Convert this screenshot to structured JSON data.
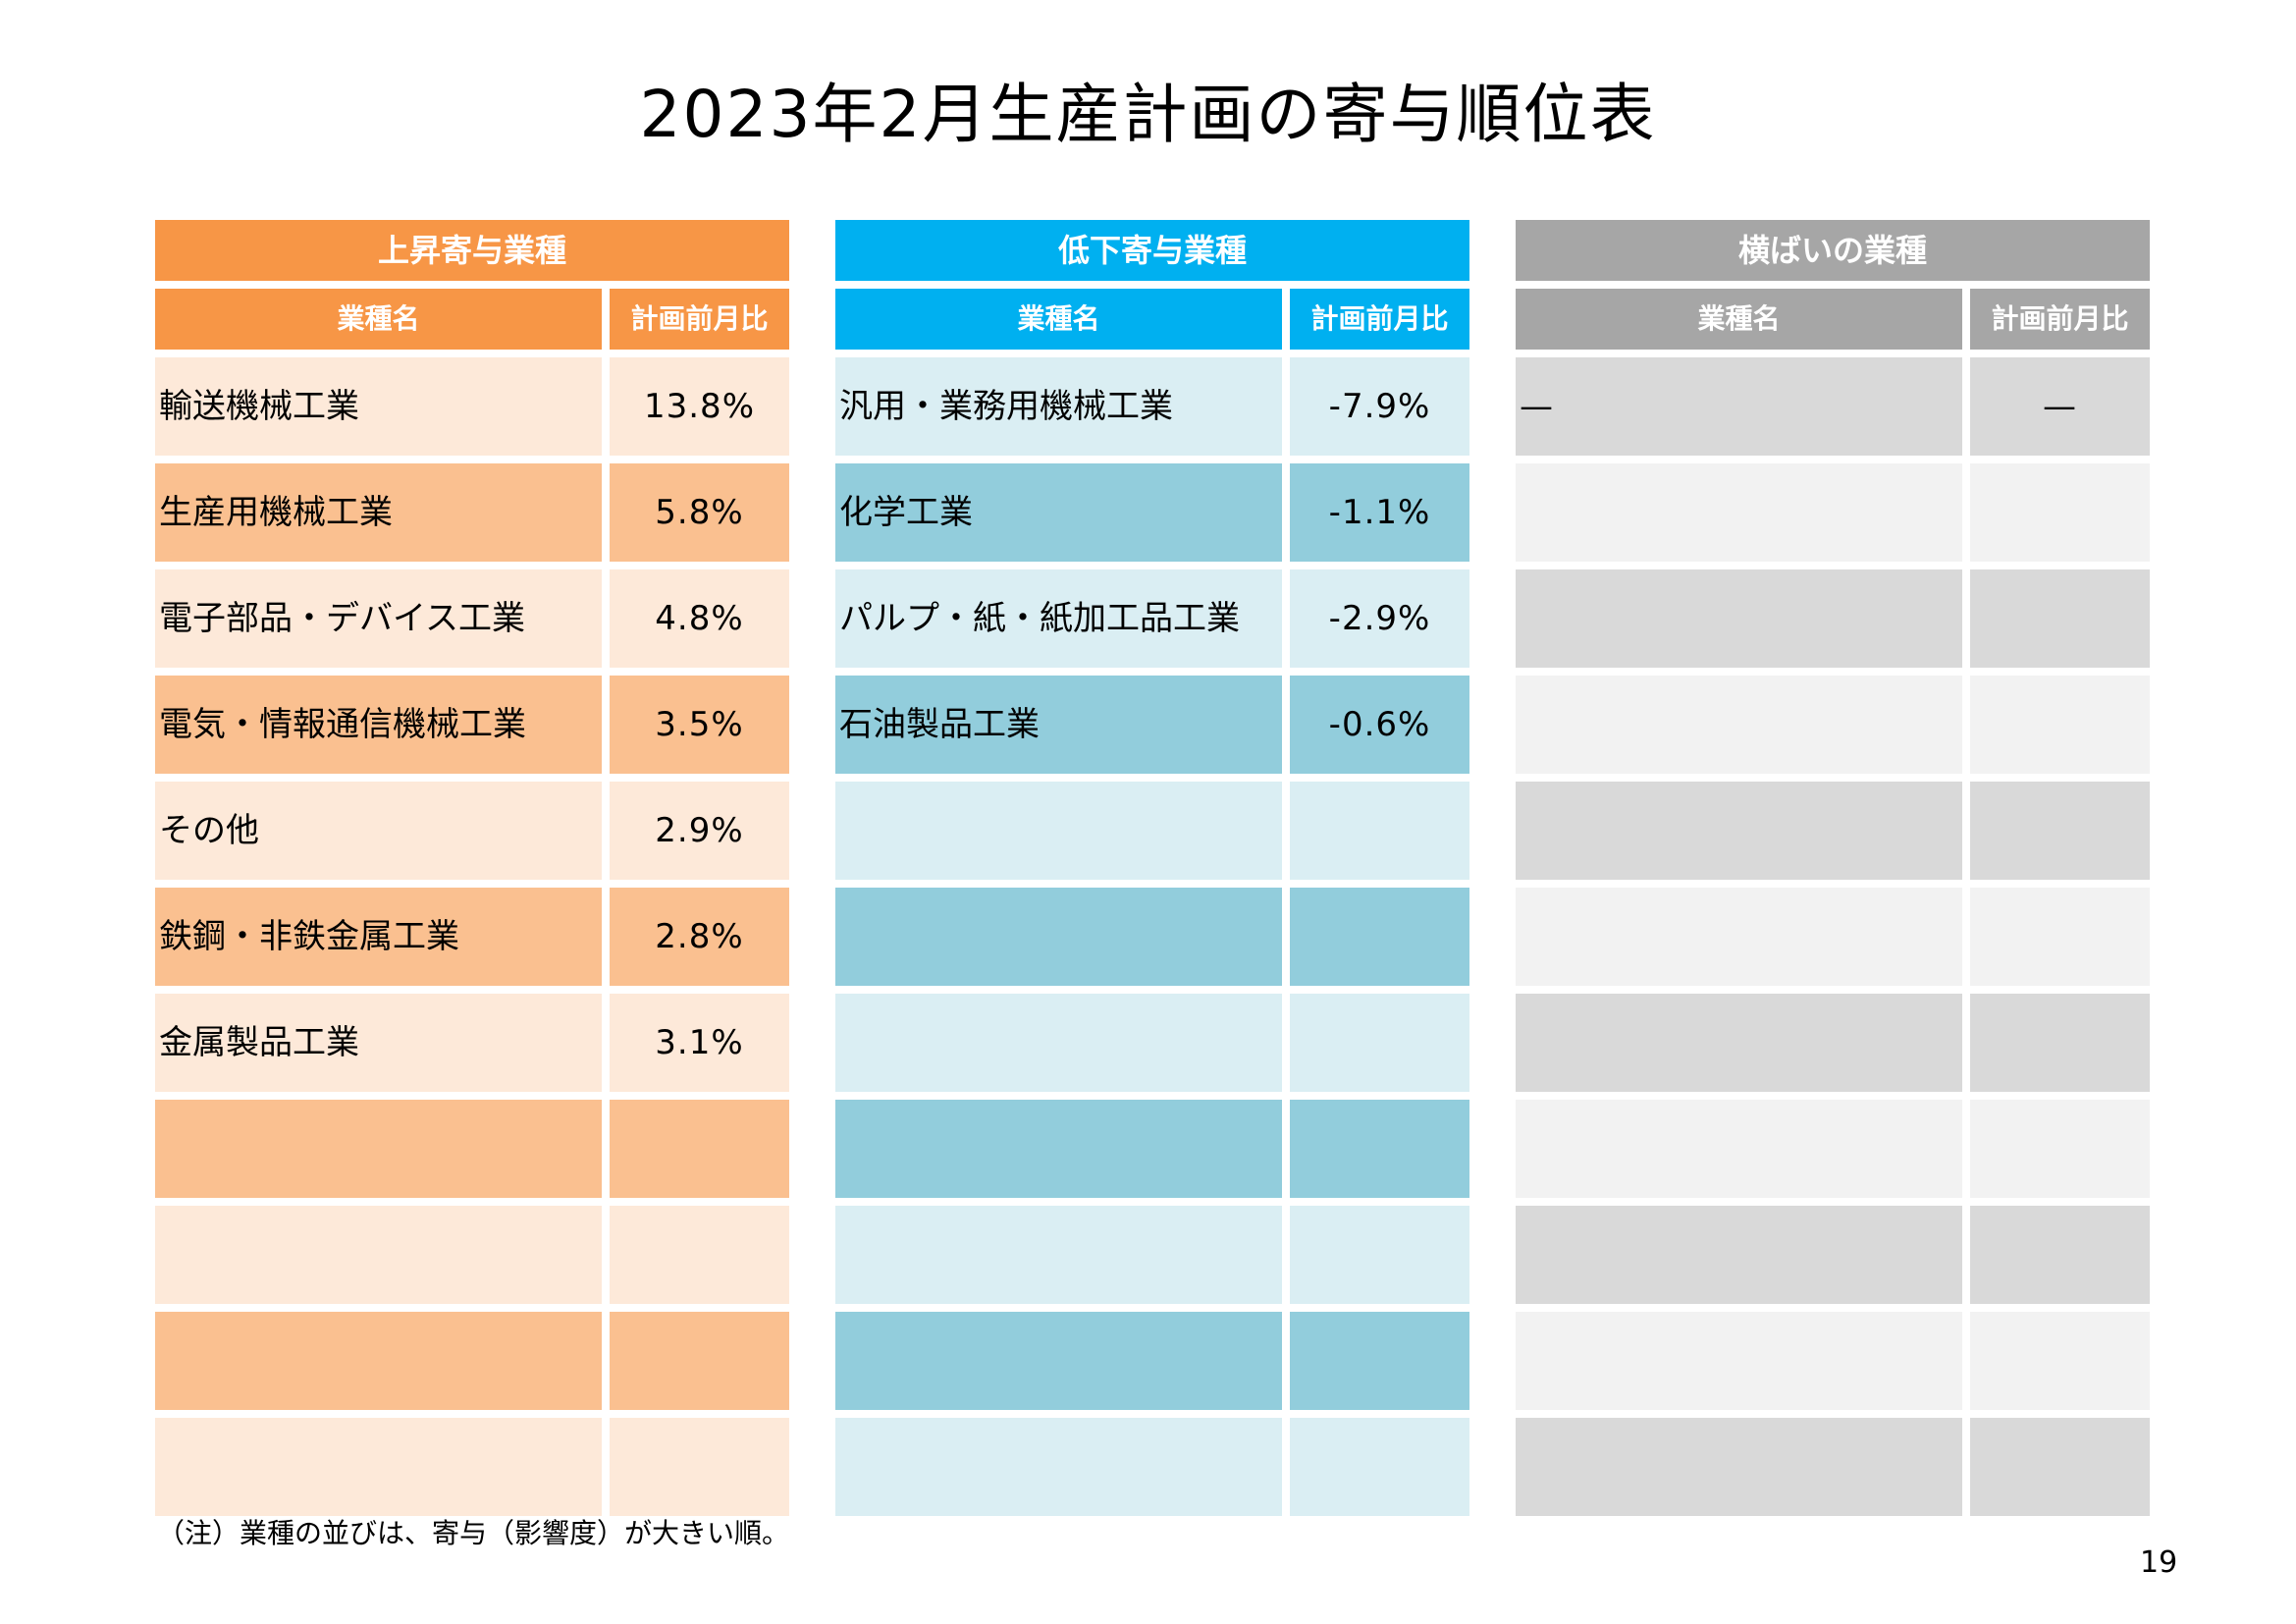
{
  "title": "2023年2月生産計画の寄与順位表",
  "panels": {
    "rising": {
      "header": "上昇寄与業種",
      "col_name": "業種名",
      "col_value": "計画前月比",
      "rows": [
        {
          "name": "輸送機械工業",
          "value": "13.8%"
        },
        {
          "name": "生産用機械工業",
          "value": "5.8%"
        },
        {
          "name": "電子部品・デバイス工業",
          "value": "4.8%"
        },
        {
          "name": "電気・情報通信機械工業",
          "value": "3.5%"
        },
        {
          "name": "その他",
          "value": "2.9%"
        },
        {
          "name": "鉄鋼・非鉄金属工業",
          "value": "2.8%"
        },
        {
          "name": "金属製品工業",
          "value": "3.1%"
        },
        {
          "name": "",
          "value": ""
        },
        {
          "name": "",
          "value": ""
        },
        {
          "name": "",
          "value": ""
        },
        {
          "name": "",
          "value": ""
        }
      ]
    },
    "falling": {
      "header": "低下寄与業種",
      "col_name": "業種名",
      "col_value": "計画前月比",
      "rows": [
        {
          "name": "汎用・業務用機械工業",
          "value": "-7.9%"
        },
        {
          "name": "化学工業",
          "value": "-1.1%"
        },
        {
          "name": "パルプ・紙・紙加工品工業",
          "value": "-2.9%"
        },
        {
          "name": "石油製品工業",
          "value": "-0.6%"
        },
        {
          "name": "",
          "value": ""
        },
        {
          "name": "",
          "value": ""
        },
        {
          "name": "",
          "value": ""
        },
        {
          "name": "",
          "value": ""
        },
        {
          "name": "",
          "value": ""
        },
        {
          "name": "",
          "value": ""
        },
        {
          "name": "",
          "value": ""
        }
      ]
    },
    "flat": {
      "header": "横ばいの業種",
      "col_name": "業種名",
      "col_value": "計画前月比",
      "rows": [
        {
          "name": "—",
          "value": "—"
        },
        {
          "name": "",
          "value": ""
        },
        {
          "name": "",
          "value": ""
        },
        {
          "name": "",
          "value": ""
        },
        {
          "name": "",
          "value": ""
        },
        {
          "name": "",
          "value": ""
        },
        {
          "name": "",
          "value": ""
        },
        {
          "name": "",
          "value": ""
        },
        {
          "name": "",
          "value": ""
        },
        {
          "name": "",
          "value": ""
        },
        {
          "name": "",
          "value": ""
        }
      ]
    }
  },
  "note": "（注）業種の並びは、寄与（影響度）が大きい順。",
  "page_number": "19"
}
